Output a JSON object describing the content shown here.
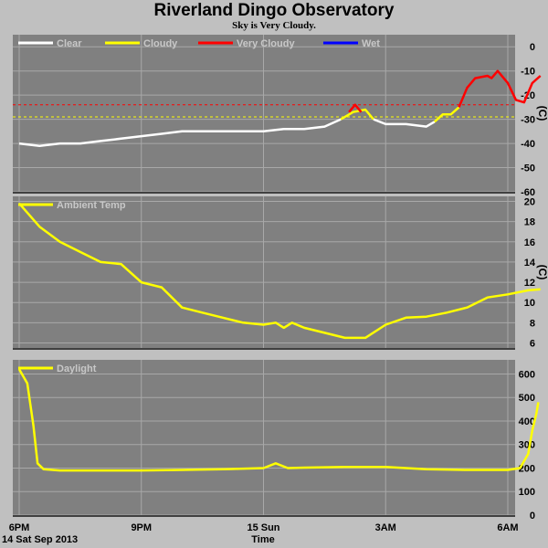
{
  "title": "Riverland Dingo Observatory",
  "subtitle": "Sky is Very Cloudy.",
  "colors": {
    "panel_bg": "#808080",
    "clear": "#ffffff",
    "cloudy": "#ffff00",
    "very_cloudy": "#ff0000",
    "wet": "#0000ff",
    "temp": "#ffff00",
    "daylight": "#ffff00"
  },
  "xaxis": {
    "ticks": [
      {
        "label": "6PM",
        "t": 0
      },
      {
        "label": "9PM",
        "t": 3
      },
      {
        "label": "15 Sun",
        "t": 6
      },
      {
        "label": "3AM",
        "t": 9
      },
      {
        "label": "6AM",
        "t": 12
      }
    ],
    "date_label": "14 Sat Sep 2013",
    "title": "Time"
  },
  "chart_data": [
    {
      "type": "line",
      "panel": "sky",
      "unit_label": "(C)",
      "ylim": [
        -60,
        5
      ],
      "yticks": [
        0,
        -10,
        -20,
        -30,
        -40,
        -50,
        -60
      ],
      "legend": [
        {
          "name": "Clear",
          "color": "#ffffff"
        },
        {
          "name": "Cloudy",
          "color": "#ffff00"
        },
        {
          "name": "Very Cloudy",
          "color": "#ff0000"
        },
        {
          "name": "Wet",
          "color": "#0000ff"
        }
      ],
      "thresholds": [
        {
          "y": -24,
          "color": "#ff0000"
        },
        {
          "y": -29,
          "color": "#ffff00"
        }
      ],
      "series": [
        {
          "name": "Clear",
          "color": "#ffffff",
          "points": [
            [
              0,
              -40
            ],
            [
              0.5,
              -41
            ],
            [
              1,
              -40
            ],
            [
              1.5,
              -40
            ],
            [
              2,
              -39
            ],
            [
              2.5,
              -38
            ],
            [
              3,
              -37
            ],
            [
              3.5,
              -36
            ],
            [
              4,
              -35
            ],
            [
              4.5,
              -35
            ],
            [
              5,
              -35
            ],
            [
              5.5,
              -35
            ],
            [
              6,
              -35
            ],
            [
              6.5,
              -34
            ],
            [
              7,
              -34
            ],
            [
              7.5,
              -33
            ],
            [
              7.9,
              -30
            ]
          ]
        },
        {
          "name": "Cloudy",
          "color": "#ffff00",
          "points": [
            [
              7.9,
              -30
            ],
            [
              8.2,
              -27
            ],
            [
              8.5,
              -26
            ],
            [
              8.7,
              -30
            ]
          ]
        },
        {
          "name": "Very Cloudy",
          "color": "#ff0000",
          "points": [
            [
              8.1,
              -27
            ],
            [
              8.25,
              -24
            ],
            [
              8.4,
              -27
            ]
          ]
        },
        {
          "name": "Clear",
          "color": "#ffffff",
          "points": [
            [
              8.7,
              -30
            ],
            [
              9,
              -32
            ],
            [
              9.5,
              -32
            ],
            [
              10,
              -33
            ],
            [
              10.2,
              -31
            ]
          ]
        },
        {
          "name": "Cloudy",
          "color": "#ffff00",
          "points": [
            [
              10.2,
              -31
            ],
            [
              10.4,
              -28
            ],
            [
              10.6,
              -28
            ],
            [
              10.8,
              -25
            ]
          ]
        },
        {
          "name": "Very Cloudy",
          "color": "#ff0000",
          "points": [
            [
              10.8,
              -25
            ],
            [
              11,
              -17
            ],
            [
              11.2,
              -13
            ],
            [
              11.5,
              -12
            ],
            [
              11.6,
              -13
            ],
            [
              11.75,
              -10
            ],
            [
              11.9,
              -13
            ],
            [
              12,
              -15
            ],
            [
              12.2,
              -22
            ],
            [
              12.4,
              -23
            ],
            [
              12.6,
              -15
            ],
            [
              12.8,
              -12
            ]
          ]
        }
      ]
    },
    {
      "type": "line",
      "panel": "ambient",
      "unit_label": "(C)",
      "ylim": [
        5.5,
        20.5
      ],
      "yticks": [
        20,
        18,
        16,
        14,
        12,
        10,
        8,
        6
      ],
      "legend": [
        {
          "name": "Ambient Temp",
          "color": "#ffff00"
        }
      ],
      "series": [
        {
          "name": "Ambient Temp",
          "color": "#ffff00",
          "points": [
            [
              0,
              19.8
            ],
            [
              0.5,
              17.5
            ],
            [
              1,
              16
            ],
            [
              1.5,
              15
            ],
            [
              2,
              14
            ],
            [
              2.5,
              13.8
            ],
            [
              3,
              12
            ],
            [
              3.5,
              11.5
            ],
            [
              4,
              9.5
            ],
            [
              4.5,
              9
            ],
            [
              5,
              8.5
            ],
            [
              5.5,
              8
            ],
            [
              6,
              7.8
            ],
            [
              6.3,
              8
            ],
            [
              6.5,
              7.5
            ],
            [
              6.7,
              8
            ],
            [
              7,
              7.5
            ],
            [
              7.5,
              7
            ],
            [
              8,
              6.5
            ],
            [
              8.5,
              6.5
            ],
            [
              9,
              7.8
            ],
            [
              9.5,
              8.5
            ],
            [
              10,
              8.6
            ],
            [
              10.5,
              9
            ],
            [
              11,
              9.5
            ],
            [
              11.5,
              10.5
            ],
            [
              12,
              10.8
            ],
            [
              12.5,
              11.2
            ],
            [
              12.8,
              11.3
            ]
          ]
        }
      ]
    },
    {
      "type": "line",
      "panel": "daylight",
      "unit_label": "",
      "ylim": [
        0,
        660
      ],
      "yticks": [
        600,
        500,
        400,
        300,
        200,
        100,
        0
      ],
      "legend": [
        {
          "name": "Daylight",
          "color": "#ffff00"
        }
      ],
      "series": [
        {
          "name": "Daylight",
          "color": "#ffff00",
          "points": [
            [
              0,
              620
            ],
            [
              0.2,
              560
            ],
            [
              0.35,
              380
            ],
            [
              0.45,
              220
            ],
            [
              0.6,
              195
            ],
            [
              1,
              190
            ],
            [
              2,
              190
            ],
            [
              3,
              190
            ],
            [
              4,
              192
            ],
            [
              5,
              195
            ],
            [
              6,
              200
            ],
            [
              6.3,
              220
            ],
            [
              6.6,
              200
            ],
            [
              7,
              202
            ],
            [
              8,
              205
            ],
            [
              9,
              205
            ],
            [
              10,
              195
            ],
            [
              11,
              192
            ],
            [
              12,
              192
            ],
            [
              12.3,
              200
            ],
            [
              12.5,
              260
            ],
            [
              12.6,
              360
            ],
            [
              12.7,
              430
            ],
            [
              12.75,
              480
            ]
          ]
        }
      ]
    }
  ]
}
